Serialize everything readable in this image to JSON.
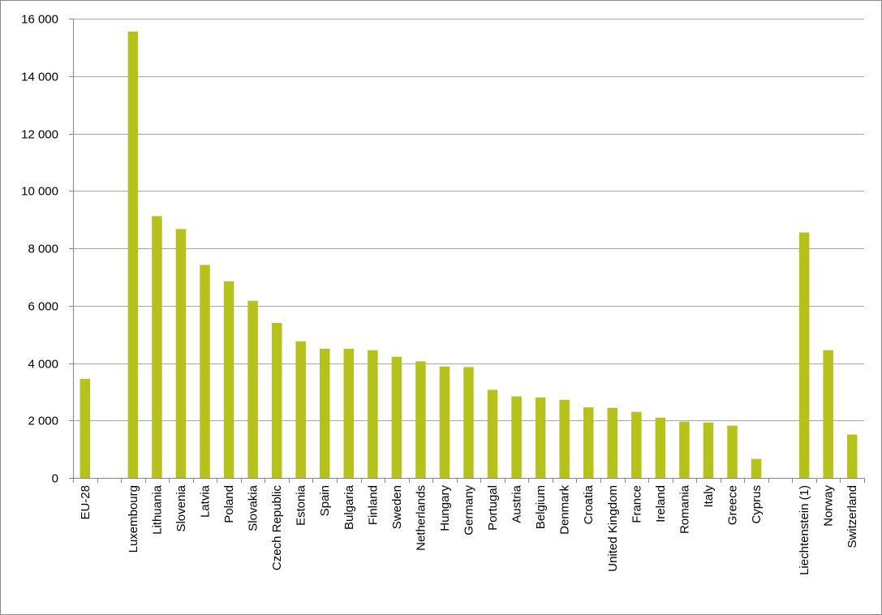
{
  "chart_data": {
    "type": "bar",
    "title": "",
    "xlabel": "",
    "ylabel": "",
    "ylim": [
      0,
      16000
    ],
    "yticks": [
      0,
      2000,
      4000,
      6000,
      8000,
      10000,
      12000,
      14000,
      16000
    ],
    "ytick_labels": [
      "0",
      "2 000",
      "4 000",
      "6 000",
      "8 000",
      "10 000",
      "12 000",
      "14 000",
      "16 000"
    ],
    "grid": true,
    "legend": "none",
    "bar_color": "#b5c21c",
    "grid_color": "#a6a6a6",
    "categories": [
      "EU-28",
      "",
      "Luxembourg",
      "Lithuania",
      "Slovenia",
      "Latvia",
      "Poland",
      "Slovakia",
      "Czech Republic",
      "Estonia",
      "Spain",
      "Bulgaria",
      "Finland",
      "Sweden",
      "Netherlands",
      "Hungary",
      "Germany",
      "Portugal",
      "Austria",
      "Belgium",
      "Denmark",
      "Croatia",
      "United Kingdom",
      "France",
      "Ireland",
      "Romania",
      "Italy",
      "Greece",
      "Cyprus",
      "",
      "Liechtenstein (1)",
      "Norway",
      "Switzerland"
    ],
    "values": [
      3450,
      null,
      15550,
      9120,
      8670,
      7420,
      6850,
      6170,
      5400,
      4760,
      4500,
      4500,
      4450,
      4220,
      4060,
      3880,
      3860,
      3070,
      2840,
      2800,
      2720,
      2460,
      2440,
      2300,
      2100,
      1960,
      1930,
      1820,
      660,
      null,
      8550,
      4450,
      1510
    ]
  }
}
